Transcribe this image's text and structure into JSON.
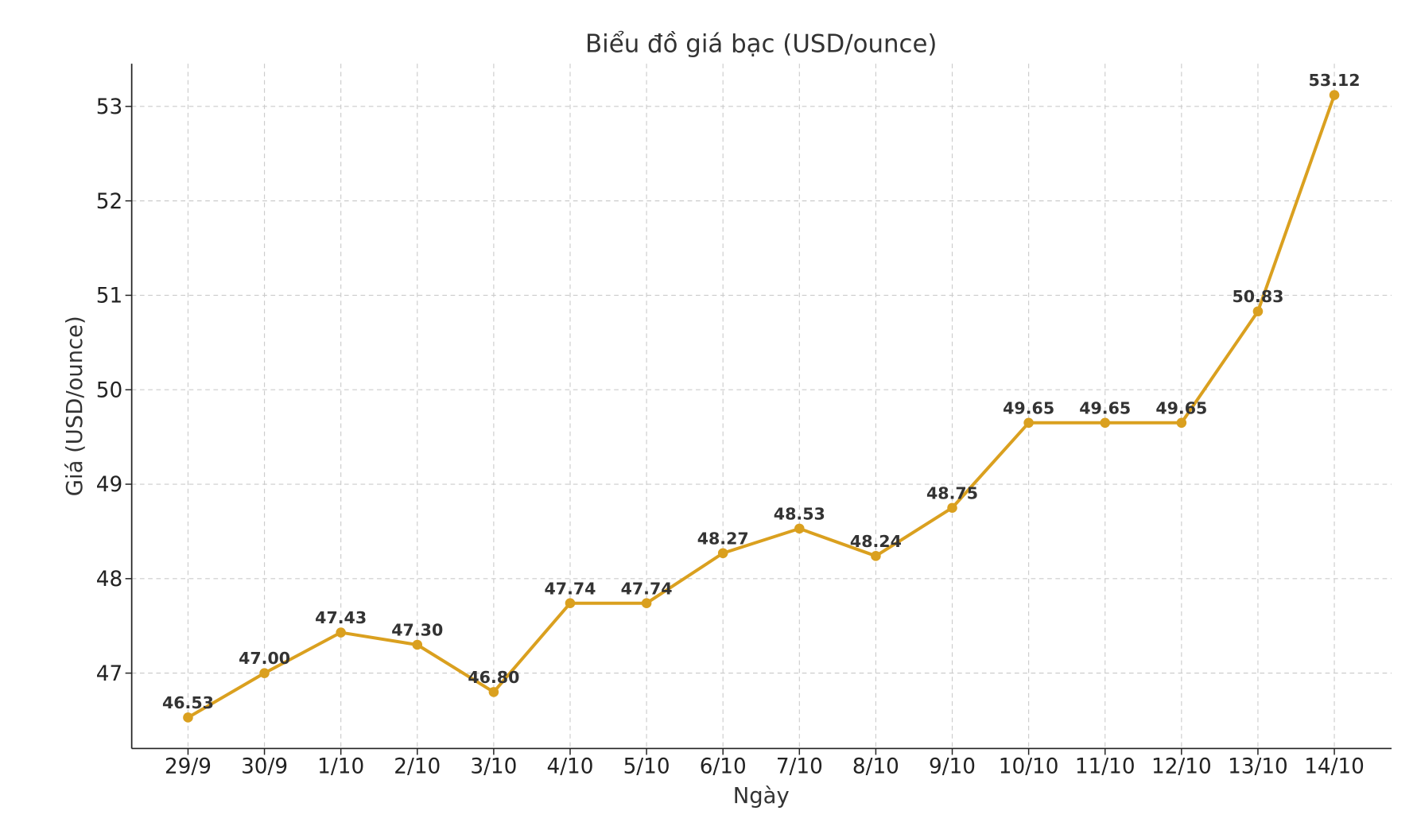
{
  "chart_data": {
    "type": "line",
    "title": "Biểu đồ giá bạc (USD/ounce)",
    "xlabel": "Ngày",
    "ylabel": "Giá (USD/ounce)",
    "categories": [
      "29/9",
      "30/9",
      "1/10",
      "2/10",
      "3/10",
      "4/10",
      "5/10",
      "6/10",
      "7/10",
      "8/10",
      "9/10",
      "10/10",
      "11/10",
      "12/10",
      "13/10",
      "14/10"
    ],
    "values": [
      46.53,
      47.0,
      47.43,
      47.3,
      46.8,
      47.74,
      47.74,
      48.27,
      48.53,
      48.24,
      48.75,
      49.65,
      49.65,
      49.65,
      50.83,
      53.12
    ],
    "data_labels": [
      "46.53",
      "47.00",
      "47.43",
      "47.30",
      "46.80",
      "47.74",
      "47.74",
      "48.27",
      "48.53",
      "48.24",
      "48.75",
      "49.65",
      "49.65",
      "49.65",
      "50.83",
      "53.12"
    ],
    "yticks": [
      "47",
      "48",
      "49",
      "50",
      "51",
      "52",
      "53"
    ],
    "ylim": [
      46.2,
      53.5
    ],
    "grid": true,
    "color": "#DAA01F"
  }
}
